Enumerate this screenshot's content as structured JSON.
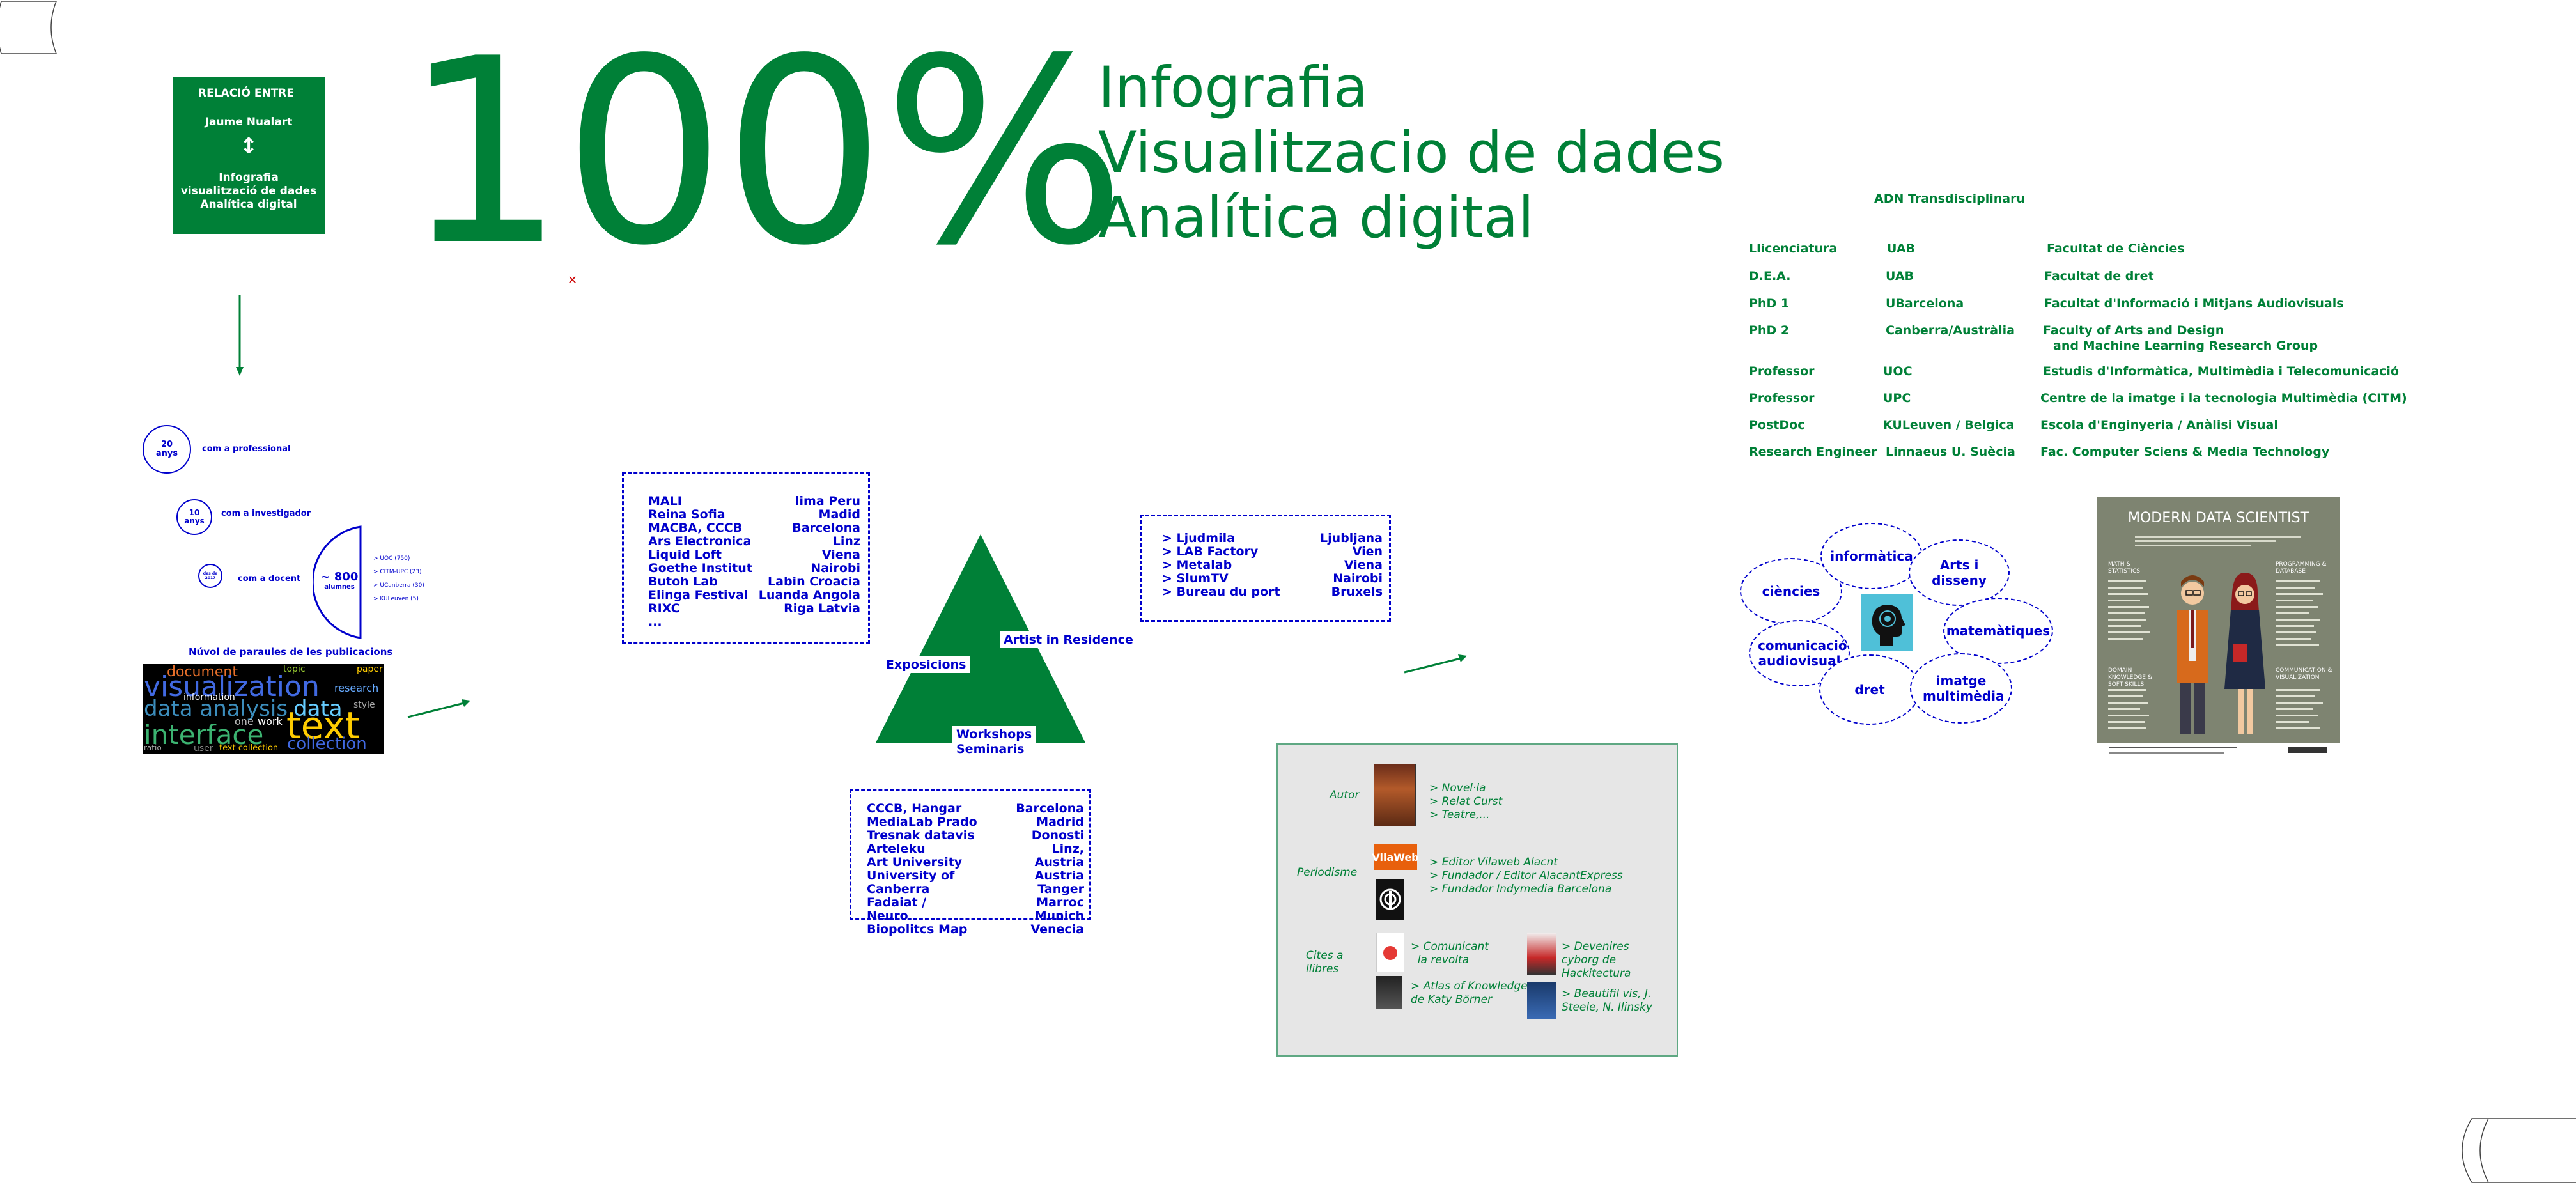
{
  "relacio": {
    "line1": "RELACIÓ ENTRE",
    "line2": "Jaume Nualart",
    "line3": "Infografia",
    "line4": "visualització de dades",
    "line5": "Analítica digital"
  },
  "big_number": "100%",
  "titles": [
    "Infografia",
    "Visualitzacio de dades",
    "Analítica digital"
  ],
  "stats": {
    "years_professional": {
      "value": "20",
      "unit": "anys",
      "label": "com a professional"
    },
    "years_researcher": {
      "value": "10",
      "unit": "anys",
      "label": "com a investigador"
    },
    "years_teacher": {
      "value": "des de 2017",
      "label": "com a docent"
    },
    "students": {
      "value": "~ 800",
      "unit": "alumnes"
    },
    "students_list": [
      "> UOC (750)",
      "> CITM-UPC (23)",
      "> UCanberra (30)",
      "> KULeuven (5)"
    ]
  },
  "wordcloud": {
    "title": "Núvol de paraules  de les publicacions",
    "words": [
      "visualization",
      "data analysis",
      "interface",
      "text",
      "data",
      "collection",
      "document",
      "information",
      "research",
      "paper",
      "user",
      "text collection",
      "work",
      "one",
      "topic",
      "style",
      "ratio"
    ]
  },
  "exhibitions_box": {
    "left": [
      "MALI",
      "Reina Sofia",
      "MACBA, CCCB",
      "Ars Electronica",
      "Liquid Loft",
      "Goethe Institut",
      "Butoh Lab",
      "Elinga Festival",
      "RIXC",
      "..."
    ],
    "right": [
      "lima Peru",
      "Madid",
      "Barcelona",
      "Linz",
      "Viena",
      "Nairobi",
      "Labin Croacia",
      "Luanda Angola",
      "Riga Latvia"
    ]
  },
  "residence_box": {
    "left": [
      "> Ljudmila",
      "> LAB Factory",
      "> Metalab",
      "> SlumTV",
      "> Bureau du port"
    ],
    "right": [
      "Ljubljana",
      "Vien",
      "Viena",
      "Nairobi",
      "Bruxels"
    ]
  },
  "workshops_box": {
    "left": [
      "CCCB, Hangar",
      "MediaLab Prado",
      "Tresnak datavis Arteleku",
      "Art University",
      "University of Canberra",
      "Fadaiat /",
      "Neuro",
      "Biopolitcs Map"
    ],
    "right": [
      "Barcelona",
      "Madrid",
      "Donosti",
      "Linz, Austria",
      "Austria",
      "Tanger Marroc",
      "Munich",
      "Venecia"
    ]
  },
  "triangle_labels": {
    "exposicions": "Exposicions",
    "artist": "Artist in Residence",
    "workshops": "Workshops",
    "seminaris": "Seminaris"
  },
  "adn": {
    "title": "ADN Transdisciplinaru",
    "rows": [
      [
        "Llicenciatura",
        "UAB",
        "Facultat de Ciències"
      ],
      [
        "D.E.A.",
        "UAB",
        "Facultat de dret"
      ],
      [
        "PhD 1",
        "UBarcelona",
        "Facultat d'Informació i Mitjans Audiovisuals"
      ],
      [
        "PhD 2",
        "Canberra/Austràlia",
        "Faculty of Arts and Design"
      ],
      [
        "",
        "",
        "and Machine Learning Research Group"
      ],
      [
        "Professor",
        "UOC",
        "Estudis d'Informàtica, Multimèdia i Telecomunicació"
      ],
      [
        "Professor",
        "UPC",
        "Centre de la imatge i la tecnologia Multimèdia (CITM)"
      ],
      [
        "PostDoc",
        "KULeuven / Belgica",
        "Escola d'Enginyeria / Anàlisi Visual"
      ],
      [
        "Research Engineer",
        "Linnaeus U. Suècia",
        "Fac. Computer Sciens & Media Technology"
      ]
    ]
  },
  "disciplines": [
    "informàtica",
    "ciències",
    "Arts i disseny",
    "matemàtiques",
    "comunicació audiovisual",
    "dret",
    "imatge multimèdia"
  ],
  "modern_data_scientist": {
    "title": "MODERN DATA SCIENTIST",
    "sections": [
      "MATH & STATISTICS",
      "PROGRAMMING & DATABASE",
      "DOMAIN KNOWLEDGE & SOFT SKILLS",
      "COMMUNICATION & VISUALIZATION"
    ]
  },
  "writing": {
    "autor_label": "Autor",
    "autor_items": [
      "> Novel·la",
      "> Relat Curst",
      "> Teatre,..."
    ],
    "periodisme_label": "Periodisme",
    "periodisme_items": [
      "> Editor Vilaweb Alacnt",
      "> Fundador / Editor AlacantExpress",
      "> Fundador Indymedia Barcelona"
    ],
    "cites_label": "Cites a llibres",
    "cites_items_1": [
      "> Comunicant",
      "  la revolta"
    ],
    "cites_items_2": [
      "> Atlas of Knowledge",
      "de Katy Börner"
    ],
    "cites_items_3": [
      "> Devenires",
      "cyborg de",
      "Hackitectura"
    ],
    "cites_items_4": [
      "> Beautifil vis, J.",
      "Steele, N. Ilinsky"
    ],
    "vilaweb_logo": "VilaWeb"
  },
  "colors": {
    "green": "#008037",
    "blue": "#0000cc",
    "grey": "#e6e6e6"
  }
}
